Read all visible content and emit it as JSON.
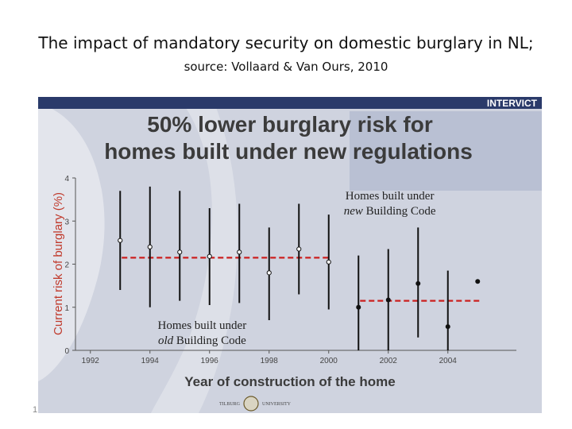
{
  "slide": {
    "title": "The impact of mandatory security on  domestic burglary in NL;",
    "source": "source: Vollaard & Van Ours, 2010",
    "number": "1"
  },
  "banner": {
    "brand": "INTERVICT",
    "headline_line1": "50% lower burglary risk for",
    "headline_line2": "homes built under new regulations",
    "footer_logo_text_left": "TILBURG",
    "footer_logo_text_right": "UNIVERSITY"
  },
  "colors": {
    "brand_bar": "#2a3a6a",
    "panel_bg": "#cfd3df",
    "headline": "#3b3b3b",
    "mean_line": "#cc1f1f",
    "axis_label": "#c0392b",
    "point": "#111111"
  },
  "chart_data": {
    "type": "scatter",
    "title": "50% lower burglary risk for homes built under new regulations",
    "xlabel": "Year of construction of the home",
    "ylabel": "Current risk of burglary (%)",
    "xlim": [
      1991.5,
      2006.3
    ],
    "ylim": [
      0,
      4
    ],
    "x_ticks": [
      1992,
      1994,
      1996,
      1998,
      2000,
      2002,
      2004
    ],
    "y_ticks": [
      0,
      1,
      2,
      3,
      4
    ],
    "series": [
      {
        "group": "old",
        "marker": "hollow",
        "x": [
          1993,
          1994,
          1995,
          1996,
          1997,
          1998,
          1999,
          2000
        ],
        "y": [
          2.55,
          2.4,
          2.28,
          2.18,
          2.28,
          1.8,
          2.35,
          2.05
        ],
        "ci_low": [
          1.4,
          1.0,
          1.15,
          1.05,
          1.1,
          0.7,
          1.3,
          0.95
        ],
        "ci_high": [
          3.7,
          3.8,
          3.7,
          3.3,
          3.4,
          2.85,
          3.4,
          3.15
        ]
      },
      {
        "group": "new",
        "marker": "filled",
        "x": [
          2001,
          2002,
          2003,
          2004,
          2005
        ],
        "y": [
          1.0,
          1.17,
          1.55,
          0.55,
          1.6
        ],
        "ci_low": [
          0.0,
          0.0,
          0.3,
          0.0,
          null
        ],
        "ci_high": [
          2.2,
          2.35,
          2.85,
          1.85,
          null
        ]
      }
    ],
    "reference_lines": [
      {
        "group": "old",
        "x_from": 1993,
        "x_to": 2000,
        "y": 2.15
      },
      {
        "group": "new",
        "x_from": 2001,
        "x_to": 2005,
        "y": 1.15
      }
    ],
    "annotations": [
      {
        "line1": "Homes built under",
        "line2_italic": "new",
        "line2_rest": " Building Code",
        "anchor_x": 2002.05,
        "anchor_y": 3.5
      },
      {
        "line1": "Homes built under",
        "line2_italic": "old",
        "line2_rest": " Building Code",
        "anchor_x": 1995.75,
        "anchor_y": 0.5
      }
    ],
    "grid": false
  }
}
